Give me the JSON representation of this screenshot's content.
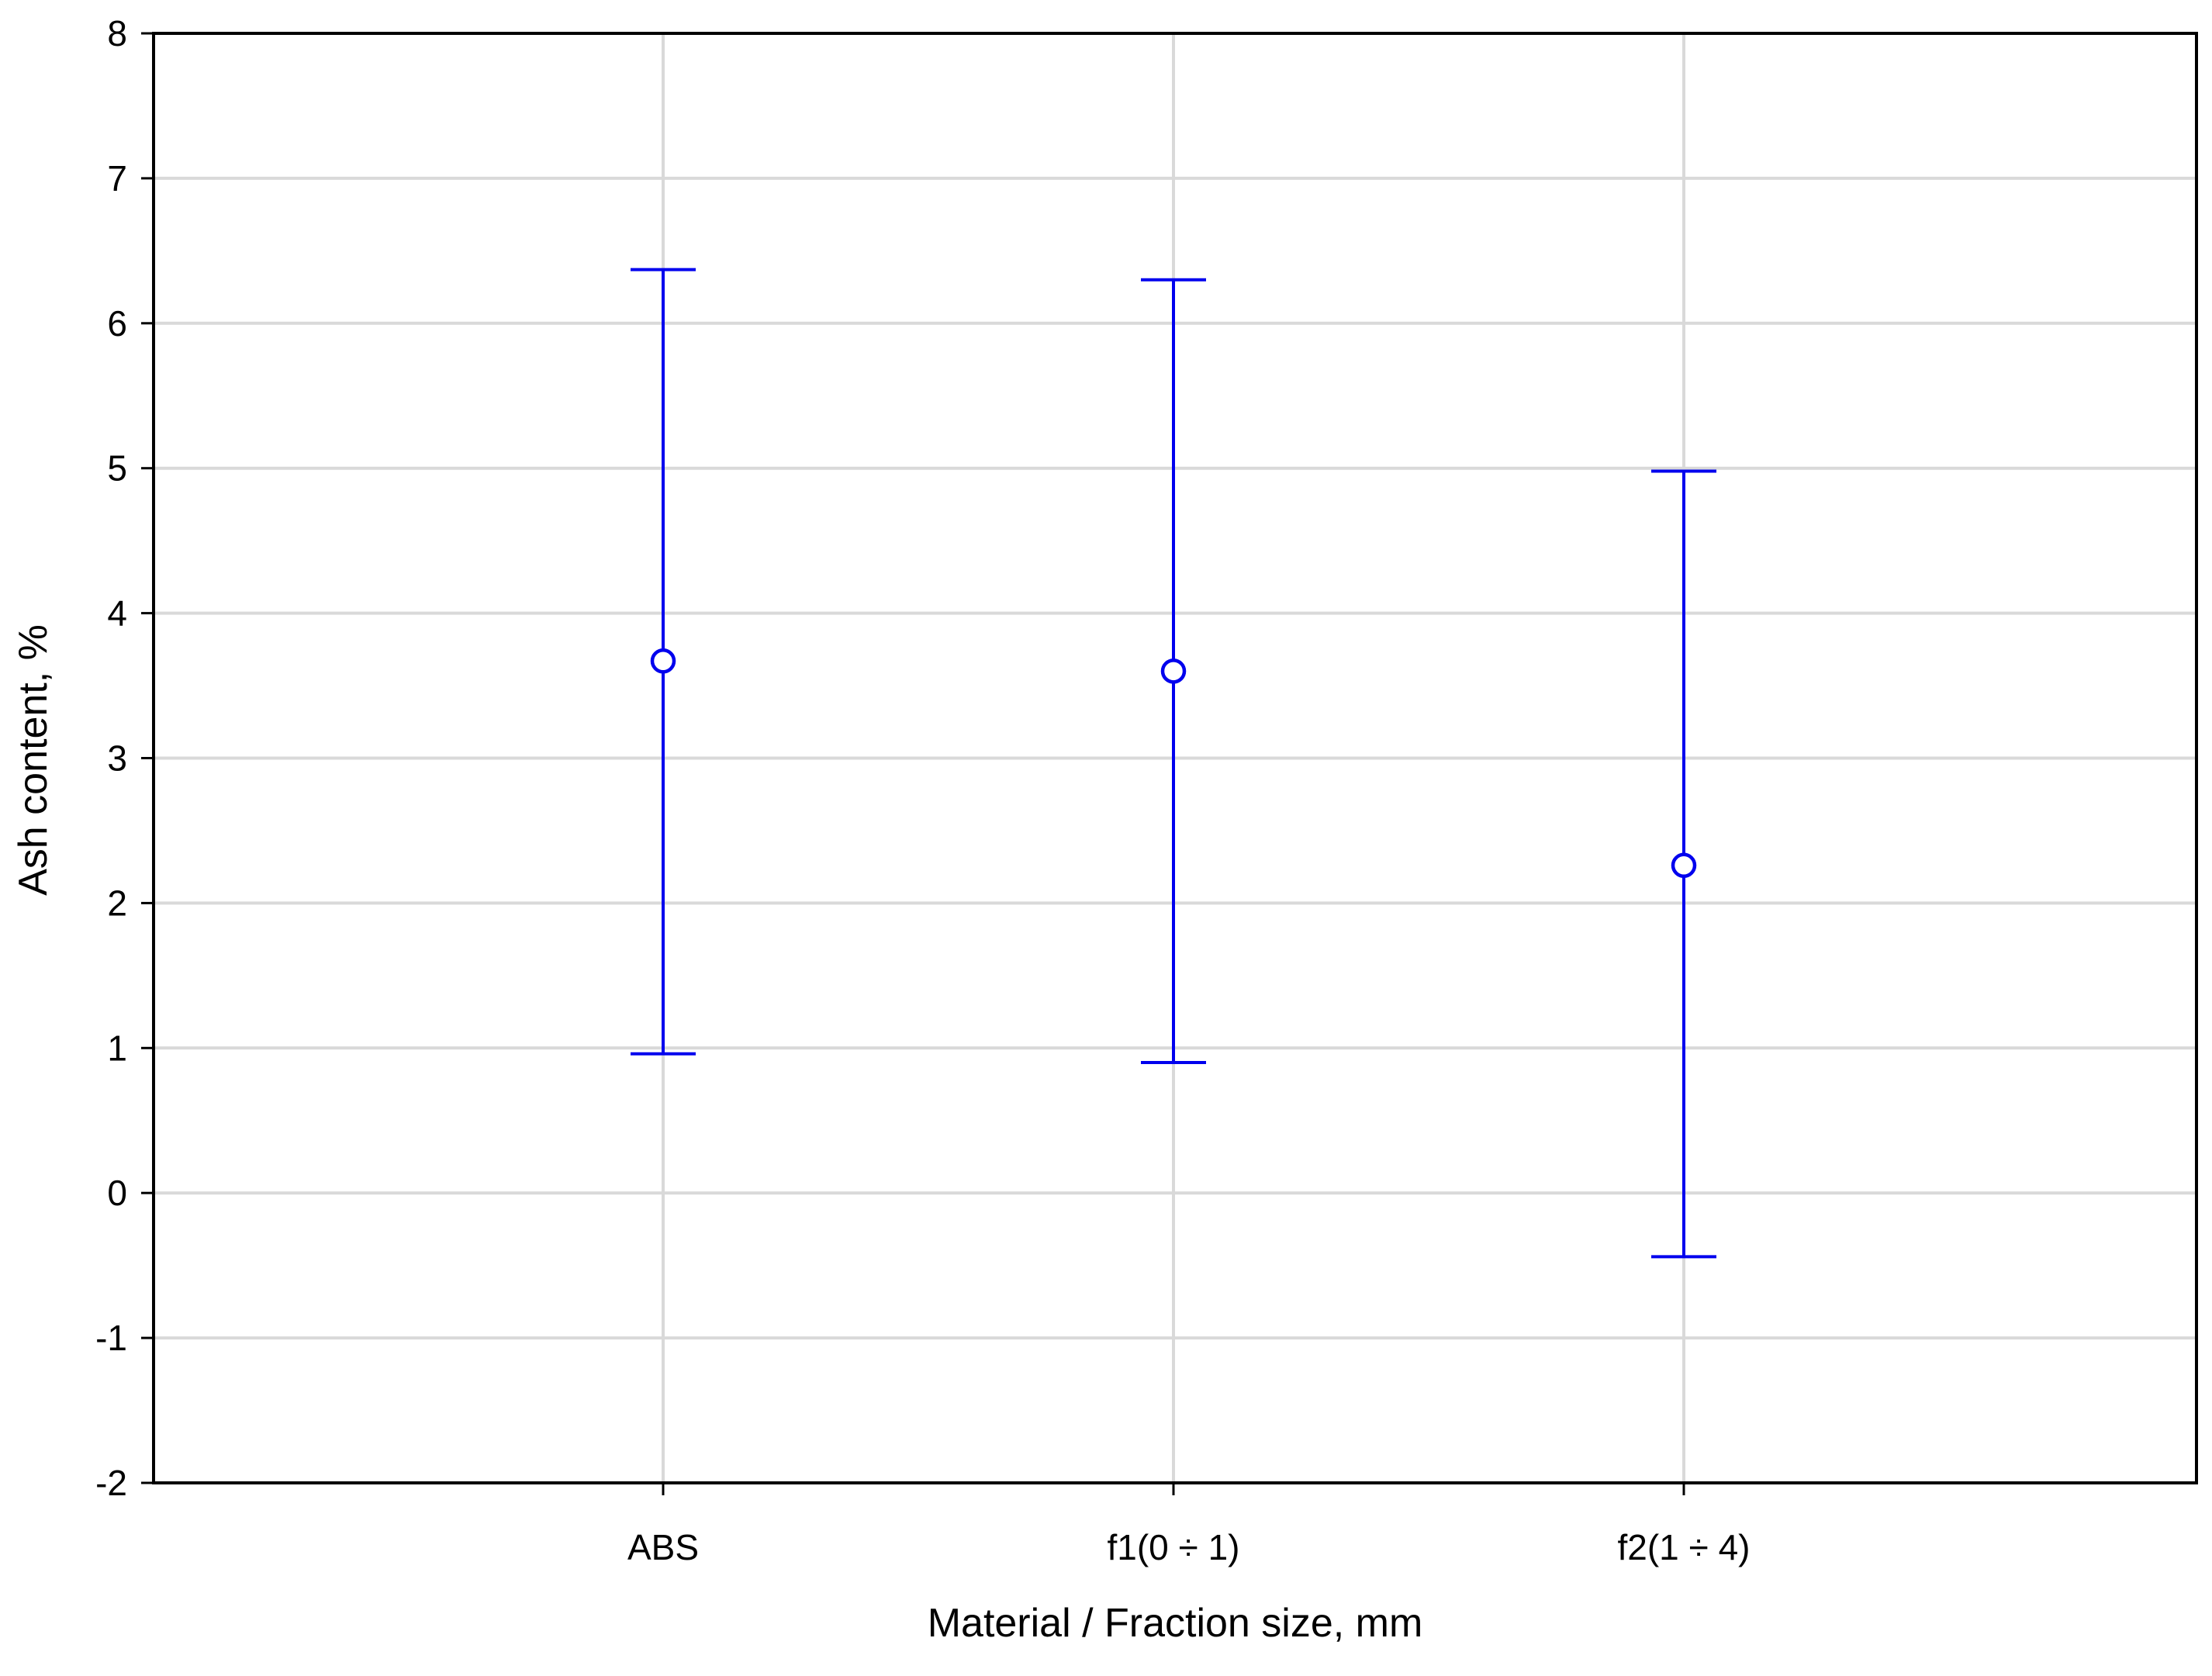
{
  "chart_data": {
    "type": "scatter",
    "subtype": "mean-with-error-bars",
    "xlabel": "Material / Fraction size, mm",
    "ylabel": "Ash content, %",
    "categories": [
      "ABS",
      "f1(0 ÷ 1)",
      "f2(1 ÷ 4)"
    ],
    "series": [
      {
        "values": [
          3.67,
          3.6,
          2.26
        ],
        "lower": [
          0.96,
          0.9,
          -0.44
        ],
        "upper": [
          6.37,
          6.3,
          4.98
        ]
      }
    ],
    "ylim": [
      -2,
      8
    ],
    "yticks": [
      -2,
      -1,
      0,
      1,
      2,
      3,
      4,
      5,
      6,
      7,
      8
    ],
    "grid": true,
    "colors": {
      "series": "#0000ee",
      "grid": "#d9d9d9",
      "axes": "#000000"
    }
  }
}
